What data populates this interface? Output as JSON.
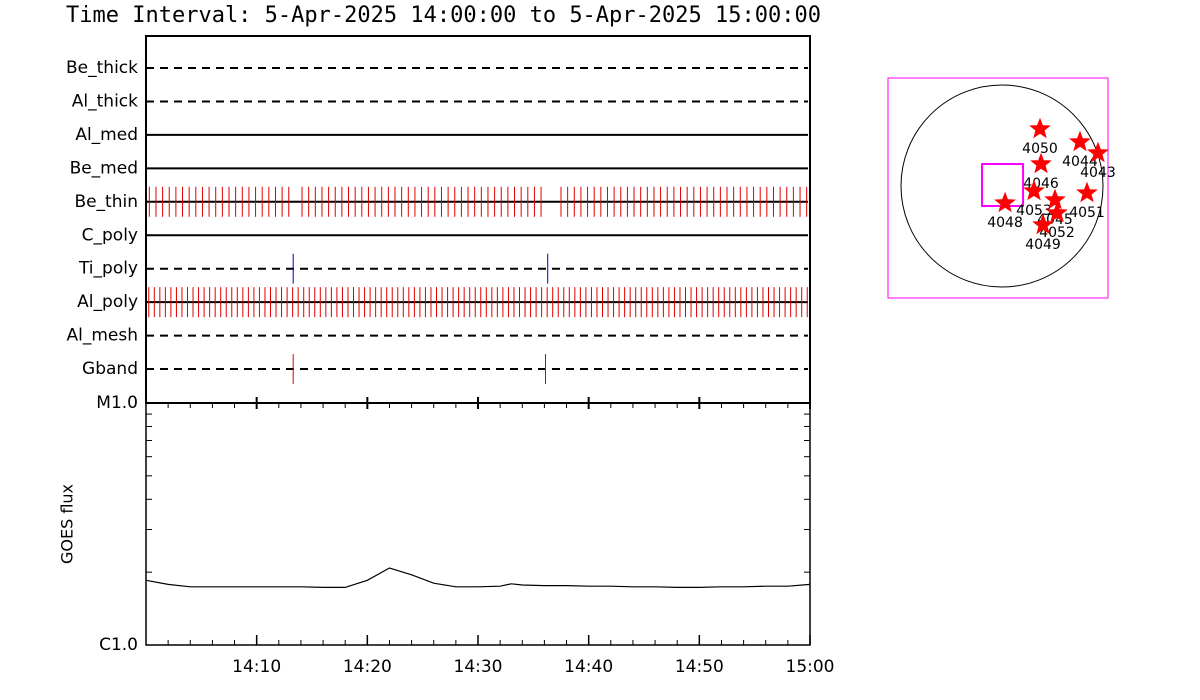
{
  "chart_data": [
    {
      "type": "timeline",
      "title": "Time Interval:  5-Apr-2025 14:00:00 to  5-Apr-2025 15:00:00",
      "xlim": [
        0,
        60
      ],
      "series": [
        {
          "name": "Be_thick",
          "style": "dashed",
          "color": "#e00000",
          "events": []
        },
        {
          "name": "Al_thick",
          "style": "dashed",
          "color": "#e00000",
          "events": []
        },
        {
          "name": "Al_med",
          "style": "solid",
          "color": "#e00000",
          "events": []
        },
        {
          "name": "Be_med",
          "style": "solid",
          "color": "#e00000",
          "events": []
        },
        {
          "name": "Be_thin",
          "style": "solid",
          "color": "#e00000",
          "events": [
            0.3,
            0.9,
            1.5,
            2.1,
            2.7,
            3.3,
            3.9,
            4.5,
            5.1,
            5.7,
            6.3,
            6.9,
            7.5,
            8.1,
            8.7,
            9.3,
            9.9,
            10.5,
            11.1,
            11.7,
            12.3,
            12.9,
            14.1,
            14.7,
            15.3,
            15.9,
            16.5,
            17.1,
            17.7,
            18.3,
            18.9,
            19.5,
            20.1,
            20.7,
            21.3,
            21.9,
            22.5,
            23.1,
            23.7,
            24.3,
            24.9,
            25.5,
            26.1,
            26.7,
            27.3,
            27.9,
            28.5,
            29.1,
            29.7,
            30.3,
            30.9,
            31.5,
            32.1,
            32.7,
            33.3,
            33.9,
            34.5,
            35.1,
            35.7,
            37.5,
            38.1,
            38.7,
            39.3,
            39.9,
            40.5,
            41.1,
            41.7,
            42.3,
            42.9,
            43.5,
            44.1,
            44.7,
            45.3,
            45.9,
            46.5,
            47.1,
            47.7,
            48.3,
            48.9,
            49.5,
            50.1,
            50.7,
            51.3,
            51.9,
            52.5,
            53.1,
            53.7,
            54.3,
            54.9,
            55.5,
            56.1,
            56.7,
            57.3,
            57.9,
            58.5,
            59.1,
            59.7
          ]
        },
        {
          "name": "C_poly",
          "style": "solid",
          "color": "#e00000",
          "events": []
        },
        {
          "name": "Ti_poly",
          "style": "dashed",
          "color": "#0000c0",
          "events": [
            13.3,
            36.3
          ]
        },
        {
          "name": "Al_poly",
          "style": "solid",
          "color": "#e00000",
          "events": [
            0.25,
            0.75,
            1.25,
            1.75,
            2.25,
            2.75,
            3.25,
            3.75,
            4.25,
            4.75,
            5.25,
            5.75,
            6.25,
            6.75,
            7.25,
            7.75,
            8.25,
            8.75,
            9.25,
            9.75,
            10.25,
            10.75,
            11.25,
            11.75,
            12.25,
            12.75,
            13.25,
            13.75,
            14.25,
            14.75,
            15.25,
            15.75,
            16.25,
            16.75,
            17.25,
            17.75,
            18.25,
            18.75,
            19.25,
            19.75,
            20.25,
            20.75,
            21.25,
            21.75,
            22.25,
            22.75,
            23.25,
            23.75,
            24.25,
            24.75,
            25.25,
            25.75,
            26.25,
            26.75,
            27.25,
            27.75,
            28.25,
            28.75,
            29.25,
            29.75,
            30.25,
            30.75,
            31.25,
            31.75,
            32.25,
            32.75,
            33.25,
            33.75,
            34.25,
            34.75,
            35.25,
            35.75,
            36.25,
            36.75,
            37.25,
            37.75,
            38.25,
            38.75,
            39.25,
            39.75,
            40.25,
            40.75,
            41.25,
            41.75,
            42.25,
            42.75,
            43.25,
            43.75,
            44.25,
            44.75,
            45.25,
            45.75,
            46.25,
            46.75,
            47.25,
            47.75,
            48.25,
            48.75,
            49.25,
            49.75,
            50.25,
            50.75,
            51.25,
            51.75,
            52.25,
            52.75,
            53.25,
            53.75,
            54.25,
            54.75,
            55.25,
            55.75,
            56.25,
            56.75,
            57.25,
            57.75,
            58.25,
            58.75,
            59.25,
            59.75
          ]
        },
        {
          "name": "Al_mesh",
          "style": "dashed",
          "color": "#e00000",
          "events": []
        },
        {
          "name": "Gband",
          "style": "dashed",
          "color": "#e00000",
          "events": [
            13.3,
            36.1
          ]
        }
      ]
    },
    {
      "type": "line",
      "ylabel": "GOES flux",
      "color": "#000000",
      "log_y": true,
      "xlim": [
        0,
        60
      ],
      "xticks": [
        {
          "value": 10,
          "label": "14:10"
        },
        {
          "value": 20,
          "label": "14:20"
        },
        {
          "value": 30,
          "label": "14:30"
        },
        {
          "value": 40,
          "label": "14:40"
        },
        {
          "value": 50,
          "label": "14:50"
        },
        {
          "value": 60,
          "label": "15:00"
        }
      ],
      "ylim": [
        1e-06,
        1e-05
      ],
      "yticks": [
        {
          "value": 1e-06,
          "label": "C1.0"
        },
        {
          "value": 1e-05,
          "label": "M1.0"
        }
      ],
      "x": [
        0,
        2,
        4,
        6,
        8,
        10,
        12,
        14,
        16,
        18,
        20,
        22,
        24,
        26,
        28,
        30,
        32,
        33,
        34,
        36,
        38,
        40,
        42,
        44,
        46,
        48,
        50,
        52,
        54,
        56,
        58,
        60
      ],
      "values": [
        1.85e-06,
        1.78e-06,
        1.74e-06,
        1.74e-06,
        1.74e-06,
        1.74e-06,
        1.74e-06,
        1.74e-06,
        1.73e-06,
        1.73e-06,
        1.85e-06,
        2.08e-06,
        1.95e-06,
        1.8e-06,
        1.74e-06,
        1.74e-06,
        1.75e-06,
        1.79e-06,
        1.77e-06,
        1.76e-06,
        1.76e-06,
        1.75e-06,
        1.75e-06,
        1.74e-06,
        1.74e-06,
        1.73e-06,
        1.73e-06,
        1.74e-06,
        1.74e-06,
        1.75e-06,
        1.75e-06,
        1.78e-06
      ]
    },
    {
      "type": "scatter",
      "color": "#ff0000",
      "fov_color": "#ff00ff",
      "fov": {
        "x": [
          -190,
          200
        ],
        "y": [
          -190,
          209
        ]
      },
      "points": [
        {
          "label": "4050",
          "x": 361,
          "y": 542
        },
        {
          "label": "4044",
          "x": 741,
          "y": 418
        },
        {
          "label": "4043",
          "x": 912,
          "y": 314
        },
        {
          "label": "4046",
          "x": 371,
          "y": 209
        },
        {
          "label": "4053",
          "x": 304,
          "y": -48
        },
        {
          "label": "4045",
          "x": 504,
          "y": -133
        },
        {
          "label": "4051",
          "x": 808,
          "y": -67
        },
        {
          "label": "4048",
          "x": 29,
          "y": -162
        },
        {
          "label": "4052",
          "x": 523,
          "y": -257
        },
        {
          "label": "4049",
          "x": 390,
          "y": -371
        }
      ]
    }
  ]
}
